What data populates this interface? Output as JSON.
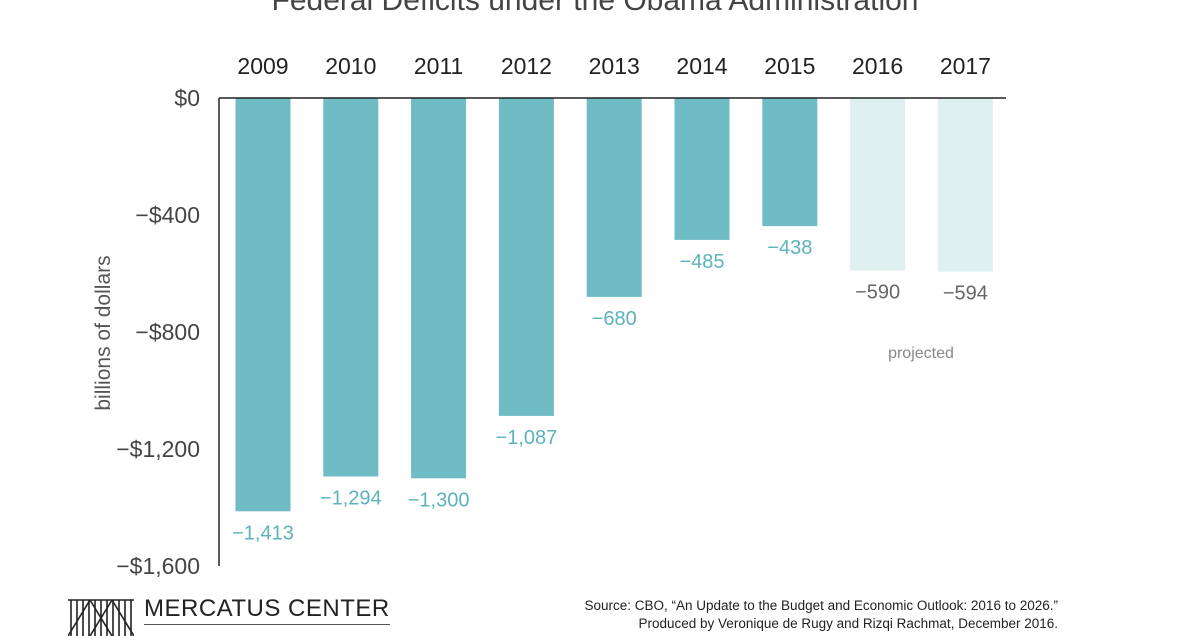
{
  "chart_data": {
    "type": "bar",
    "title": "Federal Deficits under the Obama Administration",
    "ylabel": "billions of dollars",
    "xlabel": "",
    "categories": [
      "2009",
      "2010",
      "2011",
      "2012",
      "2013",
      "2014",
      "2015",
      "2016",
      "2017"
    ],
    "values": [
      -1413,
      -1294,
      -1300,
      -1087,
      -680,
      -485,
      -438,
      -590,
      -594
    ],
    "value_labels": [
      "−1,413",
      "−1,294",
      "−1,300",
      "−1,087",
      "−680",
      "−485",
      "−438",
      "−590",
      "−594"
    ],
    "projected": [
      false,
      false,
      false,
      false,
      false,
      false,
      false,
      true,
      true
    ],
    "ylim": [
      -1600,
      0
    ],
    "yticks": [
      0,
      -400,
      -800,
      -1200,
      -1600
    ],
    "ytick_labels": [
      "$0",
      "−$400",
      "−$800",
      "−$1,200",
      "−$1,600"
    ],
    "annotation": "projected",
    "grid": false
  },
  "colors": {
    "actual_bar": "#6fbcc4",
    "projected_bar": "#dff0f1",
    "actual_label": "#5cb3bb",
    "projected_label": "#666666"
  },
  "footer": {
    "logo_text": "MERCATUS CENTER",
    "source_line1": "Source: CBO, “An Update to the Budget and Economic Outlook: 2016 to 2026.”",
    "source_line2": "Produced by Veronique de Rugy and Rizqi Rachmat, December 2016."
  }
}
